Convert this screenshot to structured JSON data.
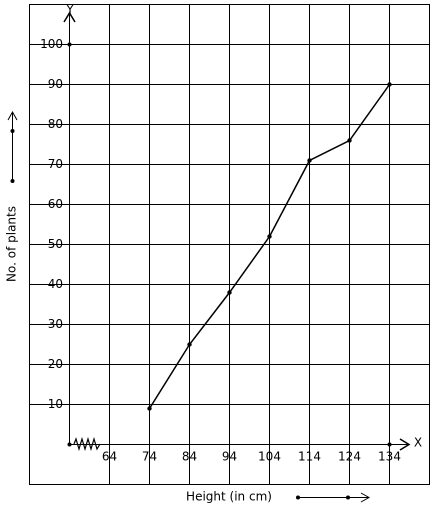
{
  "chart_data": {
    "type": "line",
    "x_label": "Height (in cm)",
    "y_label": "No. of plants",
    "x_axis_name": "X",
    "y_axis_name": "Y",
    "x": [
      74,
      84,
      94,
      104,
      114,
      124,
      134
    ],
    "series": [
      {
        "color": "#000000",
        "values": [
          9,
          25,
          38,
          52,
          71,
          76,
          90
        ]
      }
    ],
    "xlim": [
      54,
      144
    ],
    "xticks": [
      64,
      74,
      84,
      94,
      104,
      114,
      124,
      134
    ],
    "ylim": [
      0,
      110
    ],
    "yticks": [
      10,
      20,
      30,
      40,
      50,
      60,
      70,
      80,
      90,
      100
    ],
    "grid": true
  }
}
